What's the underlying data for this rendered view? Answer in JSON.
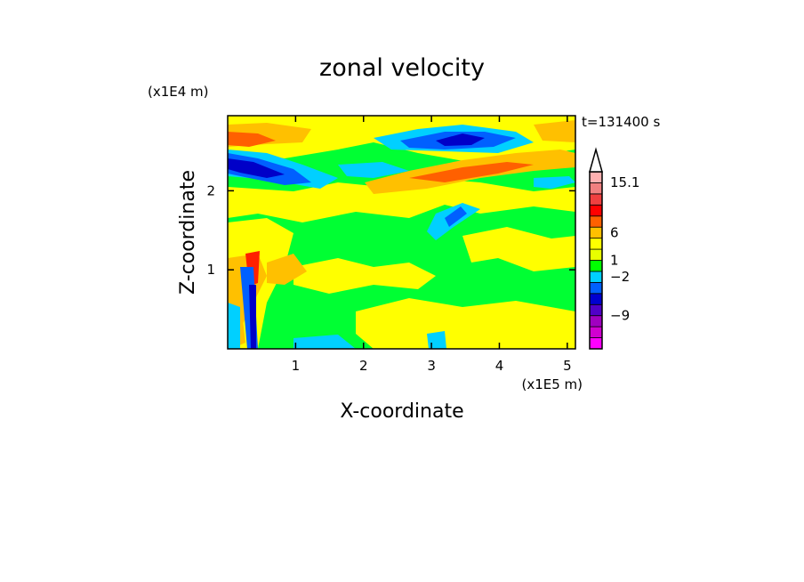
{
  "chart_data": {
    "type": "heatmap",
    "title": "zonal velocity",
    "time_label": "t=131400 s",
    "xlabel": "X-coordinate",
    "ylabel": "Z-coordinate",
    "x_scale_label": "(x1E5 m)",
    "y_scale_label": "(x1E4 m)",
    "x_ticks": [
      "1",
      "2",
      "3",
      "4",
      "5"
    ],
    "y_ticks": [
      "1",
      "2"
    ],
    "xlim": [
      0,
      5.12
    ],
    "ylim": [
      0,
      2.95
    ],
    "colorbar": {
      "labels": [
        {
          "text": "15.1",
          "value": 15.1
        },
        {
          "text": "6",
          "value": 6
        },
        {
          "text": "1",
          "value": 1
        },
        {
          "text": "−2",
          "value": -2
        },
        {
          "text": "−9",
          "value": -9
        }
      ],
      "colors": [
        "#ff00ff",
        "#d000d0",
        "#a000c0",
        "#5000c8",
        "#0000d0",
        "#0060ff",
        "#00d0ff",
        "#00ff00",
        "#e8ff00",
        "#ffff00",
        "#ffc000",
        "#ff6000",
        "#ff0000",
        "#f04040",
        "#f08080",
        "#ffb0b0"
      ]
    },
    "field_colors": {
      "strong_negative": "#0000c8",
      "negative": "#0060ff",
      "weak_negative": "#00d0ff",
      "near_zero": "#00ff33",
      "weak_positive": "#ffff00",
      "positive": "#ffc000",
      "strong_positive": "#ff6000",
      "very_strong_positive": "#ff2000"
    }
  }
}
